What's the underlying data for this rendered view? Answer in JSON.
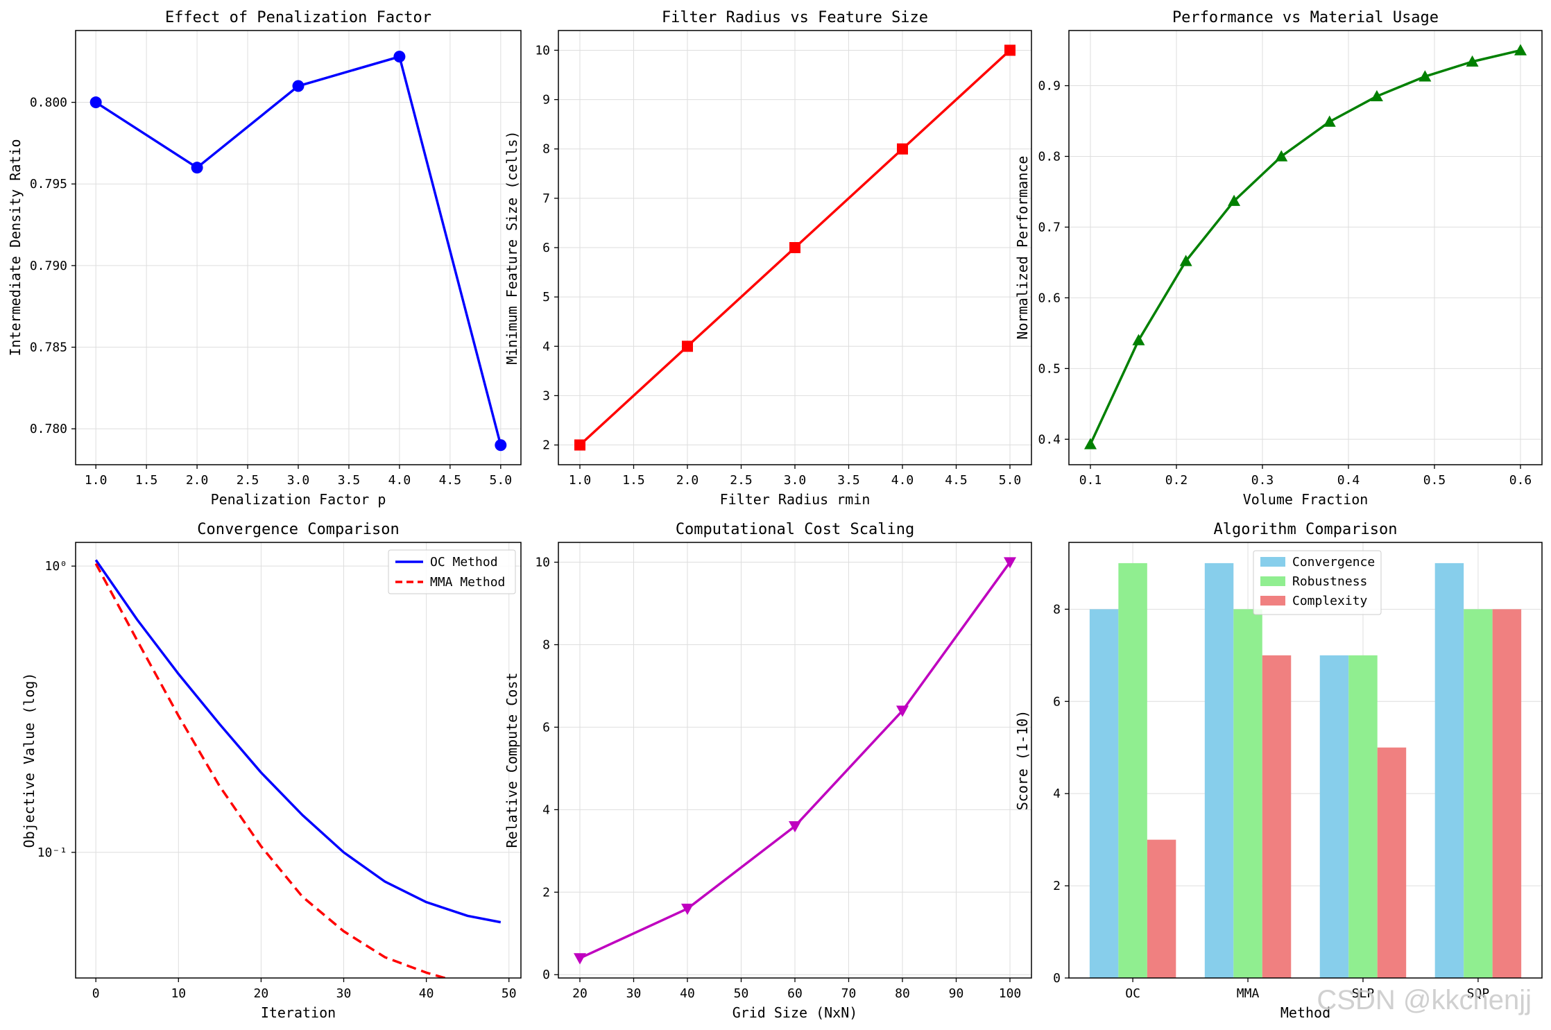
{
  "figure": {
    "watermark": "CSDN @kkchenjj"
  },
  "chart_data": [
    {
      "id": "p1",
      "type": "line",
      "title": "Effect of Penalization Factor",
      "xlabel": "Penalization Factor p",
      "ylabel": "Intermediate Density Ratio",
      "xlim": [
        0.8,
        5.2
      ],
      "ylim": [
        0.7778,
        0.8044
      ],
      "xticks": [
        1.0,
        1.5,
        2.0,
        2.5,
        3.0,
        3.5,
        4.0,
        4.5,
        5.0
      ],
      "xticklabels": [
        "1.0",
        "1.5",
        "2.0",
        "2.5",
        "3.0",
        "3.5",
        "4.0",
        "4.5",
        "5.0"
      ],
      "yticks": [
        0.78,
        0.785,
        0.79,
        0.795,
        0.8
      ],
      "yticklabels": [
        "0.780",
        "0.785",
        "0.790",
        "0.795",
        "0.800"
      ],
      "yscale": "linear",
      "grid": true,
      "series": [
        {
          "name": "penalization",
          "color": "#0000ff",
          "marker": "circle",
          "dash": "",
          "x": [
            1,
            2,
            3,
            4,
            5
          ],
          "y": [
            0.8,
            0.796,
            0.801,
            0.8028,
            0.779
          ]
        }
      ]
    },
    {
      "id": "p2",
      "type": "line",
      "title": "Filter Radius vs Feature Size",
      "xlabel": "Filter Radius rmin",
      "ylabel": "Minimum Feature Size (cells)",
      "xlim": [
        0.8,
        5.2
      ],
      "ylim": [
        1.6,
        10.4
      ],
      "xticks": [
        1.0,
        1.5,
        2.0,
        2.5,
        3.0,
        3.5,
        4.0,
        4.5,
        5.0
      ],
      "xticklabels": [
        "1.0",
        "1.5",
        "2.0",
        "2.5",
        "3.0",
        "3.5",
        "4.0",
        "4.5",
        "5.0"
      ],
      "yticks": [
        2,
        3,
        4,
        5,
        6,
        7,
        8,
        9,
        10
      ],
      "yticklabels": [
        "2",
        "3",
        "4",
        "5",
        "6",
        "7",
        "8",
        "9",
        "10"
      ],
      "yscale": "linear",
      "grid": true,
      "series": [
        {
          "name": "feature size",
          "color": "#ff0000",
          "marker": "square",
          "dash": "",
          "x": [
            1,
            2,
            3,
            4,
            5
          ],
          "y": [
            2,
            4,
            6,
            8,
            10
          ]
        }
      ]
    },
    {
      "id": "p3",
      "type": "line",
      "title": "Performance vs Material Usage",
      "xlabel": "Volume Fraction",
      "ylabel": "Normalized Performance",
      "xlim": [
        0.075,
        0.625
      ],
      "ylim": [
        0.364,
        0.978
      ],
      "xticks": [
        0.1,
        0.2,
        0.3,
        0.4,
        0.5,
        0.6
      ],
      "xticklabels": [
        "0.1",
        "0.2",
        "0.3",
        "0.4",
        "0.5",
        "0.6"
      ],
      "yticks": [
        0.4,
        0.5,
        0.6,
        0.7,
        0.8,
        0.9
      ],
      "yticklabels": [
        "0.4",
        "0.5",
        "0.6",
        "0.7",
        "0.8",
        "0.9"
      ],
      "yscale": "linear",
      "grid": true,
      "series": [
        {
          "name": "performance",
          "color": "#008000",
          "marker": "triangle-up",
          "dash": "",
          "x": [
            0.1,
            0.156,
            0.211,
            0.267,
            0.322,
            0.378,
            0.433,
            0.489,
            0.544,
            0.6
          ],
          "y": [
            0.393,
            0.54,
            0.652,
            0.737,
            0.8,
            0.849,
            0.885,
            0.913,
            0.934,
            0.95
          ]
        }
      ]
    },
    {
      "id": "p4",
      "type": "line",
      "title": "Convergence Comparison",
      "xlabel": "Iteration",
      "ylabel": "Objective Value (log)",
      "xlim": [
        -2.45,
        51.45
      ],
      "ylim": [
        0.0364,
        1.21
      ],
      "xticks": [
        0,
        10,
        20,
        30,
        40,
        50
      ],
      "xticklabels": [
        "0",
        "10",
        "20",
        "30",
        "40",
        "50"
      ],
      "yticks": [
        1,
        0.1
      ],
      "yticklabels": [
        "10⁰",
        "10⁻¹"
      ],
      "yscale": "log",
      "grid": true,
      "legend": {
        "position": "upper right",
        "entries": [
          "OC Method",
          "MMA Method"
        ]
      },
      "series": [
        {
          "name": "OC Method",
          "color": "#0000ff",
          "marker": "",
          "dash": "",
          "x": [
            0,
            5,
            10,
            15,
            20,
            25,
            30,
            35,
            40,
            45,
            49
          ],
          "y": [
            1.05,
            0.65,
            0.42,
            0.28,
            0.19,
            0.135,
            0.1,
            0.079,
            0.067,
            0.06,
            0.057
          ]
        },
        {
          "name": "MMA Method",
          "color": "#ff0000",
          "marker": "",
          "dash": "14,8",
          "x": [
            0,
            5,
            10,
            15,
            20,
            25,
            30,
            35,
            40,
            45,
            49
          ],
          "y": [
            1.02,
            0.55,
            0.3,
            0.17,
            0.105,
            0.07,
            0.053,
            0.043,
            0.038,
            0.0345,
            0.0325
          ]
        }
      ]
    },
    {
      "id": "p5",
      "type": "line",
      "title": "Computational Cost Scaling",
      "xlabel": "Grid Size (NxN)",
      "ylabel": "Relative Compute Cost",
      "xlim": [
        16,
        104
      ],
      "ylim": [
        -0.08,
        10.48
      ],
      "xticks": [
        20,
        30,
        40,
        50,
        60,
        70,
        80,
        90,
        100
      ],
      "xticklabels": [
        "20",
        "30",
        "40",
        "50",
        "60",
        "70",
        "80",
        "90",
        "100"
      ],
      "yticks": [
        0,
        2,
        4,
        6,
        8,
        10
      ],
      "yticklabels": [
        "0",
        "2",
        "4",
        "6",
        "8",
        "10"
      ],
      "yscale": "linear",
      "grid": true,
      "series": [
        {
          "name": "cost",
          "color": "#bf00bf",
          "marker": "triangle-down",
          "dash": "",
          "x": [
            20,
            40,
            60,
            80,
            100
          ],
          "y": [
            0.4,
            1.6,
            3.6,
            6.4,
            10.0
          ]
        }
      ]
    },
    {
      "id": "p6",
      "type": "bar",
      "title": "Algorithm Comparison",
      "xlabel": "Method",
      "ylabel": "Score (1-10)",
      "xlim": [
        -0.555,
        3.555
      ],
      "ylim": [
        0,
        9.45
      ],
      "categories": [
        "OC",
        "MMA",
        "SLP",
        "SQP"
      ],
      "yticks": [
        0,
        2,
        4,
        6,
        8
      ],
      "yticklabels": [
        "0",
        "2",
        "4",
        "6",
        "8"
      ],
      "yscale": "linear",
      "grid": true,
      "legend": {
        "position": "upper center",
        "entries": [
          "Convergence",
          "Robustness",
          "Complexity"
        ]
      },
      "series": [
        {
          "name": "Convergence",
          "color": "#87ceeb",
          "values": [
            8,
            9,
            7,
            9
          ]
        },
        {
          "name": "Robustness",
          "color": "#90ee90",
          "values": [
            9,
            8,
            7,
            8
          ]
        },
        {
          "name": "Complexity",
          "color": "#f08080",
          "values": [
            3,
            7,
            5,
            8
          ]
        }
      ]
    }
  ]
}
